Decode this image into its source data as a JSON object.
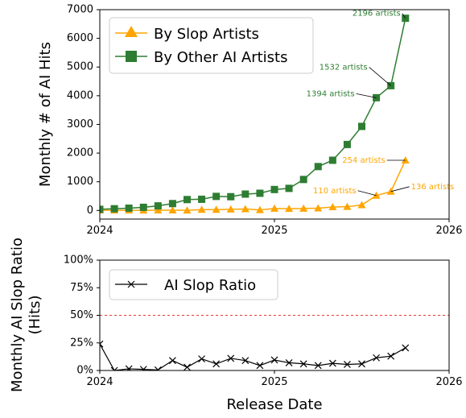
{
  "chart_data": [
    {
      "type": "line",
      "ylabel": "Monthly # of AI Hits",
      "xlim": [
        2024.0,
        2026.0
      ],
      "ylim": [
        -300,
        7000
      ],
      "yticks": [
        0,
        1000,
        2000,
        3000,
        4000,
        5000,
        6000,
        7000
      ],
      "xticks": [
        2024,
        2025,
        2026
      ],
      "xtick_labels": [
        "2024",
        "2025",
        "2026"
      ],
      "grid": false,
      "legend_position": "top-left",
      "series": [
        {
          "name": "By Slop Artists",
          "color": "#ffa500",
          "marker": "triangle",
          "x": [
            "2024-01",
            "2024-02",
            "2024-03",
            "2024-04",
            "2024-05",
            "2024-06",
            "2024-07",
            "2024-08",
            "2024-09",
            "2024-10",
            "2024-11",
            "2024-12",
            "2025-01",
            "2025-02",
            "2025-03",
            "2025-04",
            "2025-05",
            "2025-06",
            "2025-07",
            "2025-08",
            "2025-09",
            "2025-10"
          ],
          "values": [
            10,
            5,
            5,
            5,
            10,
            10,
            5,
            30,
            30,
            40,
            50,
            20,
            70,
            60,
            70,
            80,
            120,
            130,
            190,
            520,
            660,
            1750
          ]
        },
        {
          "name": "By Other AI Artists",
          "color": "#2e7d32",
          "marker": "square",
          "x": [
            "2024-01",
            "2024-02",
            "2024-03",
            "2024-04",
            "2024-05",
            "2024-06",
            "2024-07",
            "2024-08",
            "2024-09",
            "2024-10",
            "2024-11",
            "2024-12",
            "2025-01",
            "2025-02",
            "2025-03",
            "2025-04",
            "2025-05",
            "2025-06",
            "2025-07",
            "2025-08",
            "2025-09",
            "2025-10"
          ],
          "values": [
            40,
            60,
            80,
            110,
            160,
            240,
            380,
            390,
            490,
            480,
            570,
            600,
            730,
            770,
            1080,
            1530,
            1750,
            2300,
            2930,
            3930,
            4350,
            6700
          ]
        }
      ],
      "annotations": [
        {
          "text": "2196 artists",
          "x": "2025-10",
          "y": 6700,
          "color": "#2e7d32"
        },
        {
          "text": "1532 artists",
          "x": "2025-09",
          "y": 4350,
          "color": "#2e7d32"
        },
        {
          "text": "1394 artists",
          "x": "2025-08",
          "y": 3930,
          "color": "#2e7d32"
        },
        {
          "text": "254 artists",
          "x": "2025-10",
          "y": 1750,
          "color": "#ffa500"
        },
        {
          "text": "110 artists",
          "x": "2025-08",
          "y": 520,
          "color": "#ffa500"
        },
        {
          "text": "136 artists",
          "x": "2025-09",
          "y": 660,
          "color": "#ffa500"
        }
      ]
    },
    {
      "type": "line",
      "ylabel": "Monthly AI Slop Ratio\n(Hits)",
      "xlabel": "Release Date",
      "xlim": [
        2024.0,
        2026.0
      ],
      "ylim": [
        0,
        1
      ],
      "yticks": [
        0,
        0.25,
        0.5,
        0.75,
        1.0
      ],
      "ytick_labels": [
        "0%",
        "25%",
        "50%",
        "75%",
        "100%"
      ],
      "xticks": [
        2024,
        2025,
        2026
      ],
      "xtick_labels": [
        "2024",
        "2025",
        "2026"
      ],
      "grid": false,
      "legend_position": "top-left",
      "reference_line": {
        "y": 0.5,
        "color": "#e53935",
        "style": "dashed"
      },
      "series": [
        {
          "name": "AI Slop Ratio",
          "color": "#000000",
          "marker": "x",
          "x": [
            "2024-01",
            "2024-02",
            "2024-03",
            "2024-04",
            "2024-05",
            "2024-06",
            "2024-07",
            "2024-08",
            "2024-09",
            "2024-10",
            "2024-11",
            "2024-12",
            "2025-01",
            "2025-02",
            "2025-03",
            "2025-04",
            "2025-05",
            "2025-06",
            "2025-07",
            "2025-08",
            "2025-09",
            "2025-10"
          ],
          "values": [
            0.24,
            0.0,
            0.015,
            0.01,
            0.005,
            0.09,
            0.03,
            0.105,
            0.06,
            0.11,
            0.09,
            0.045,
            0.095,
            0.07,
            0.06,
            0.045,
            0.065,
            0.055,
            0.06,
            0.115,
            0.13,
            0.205
          ]
        }
      ]
    }
  ]
}
